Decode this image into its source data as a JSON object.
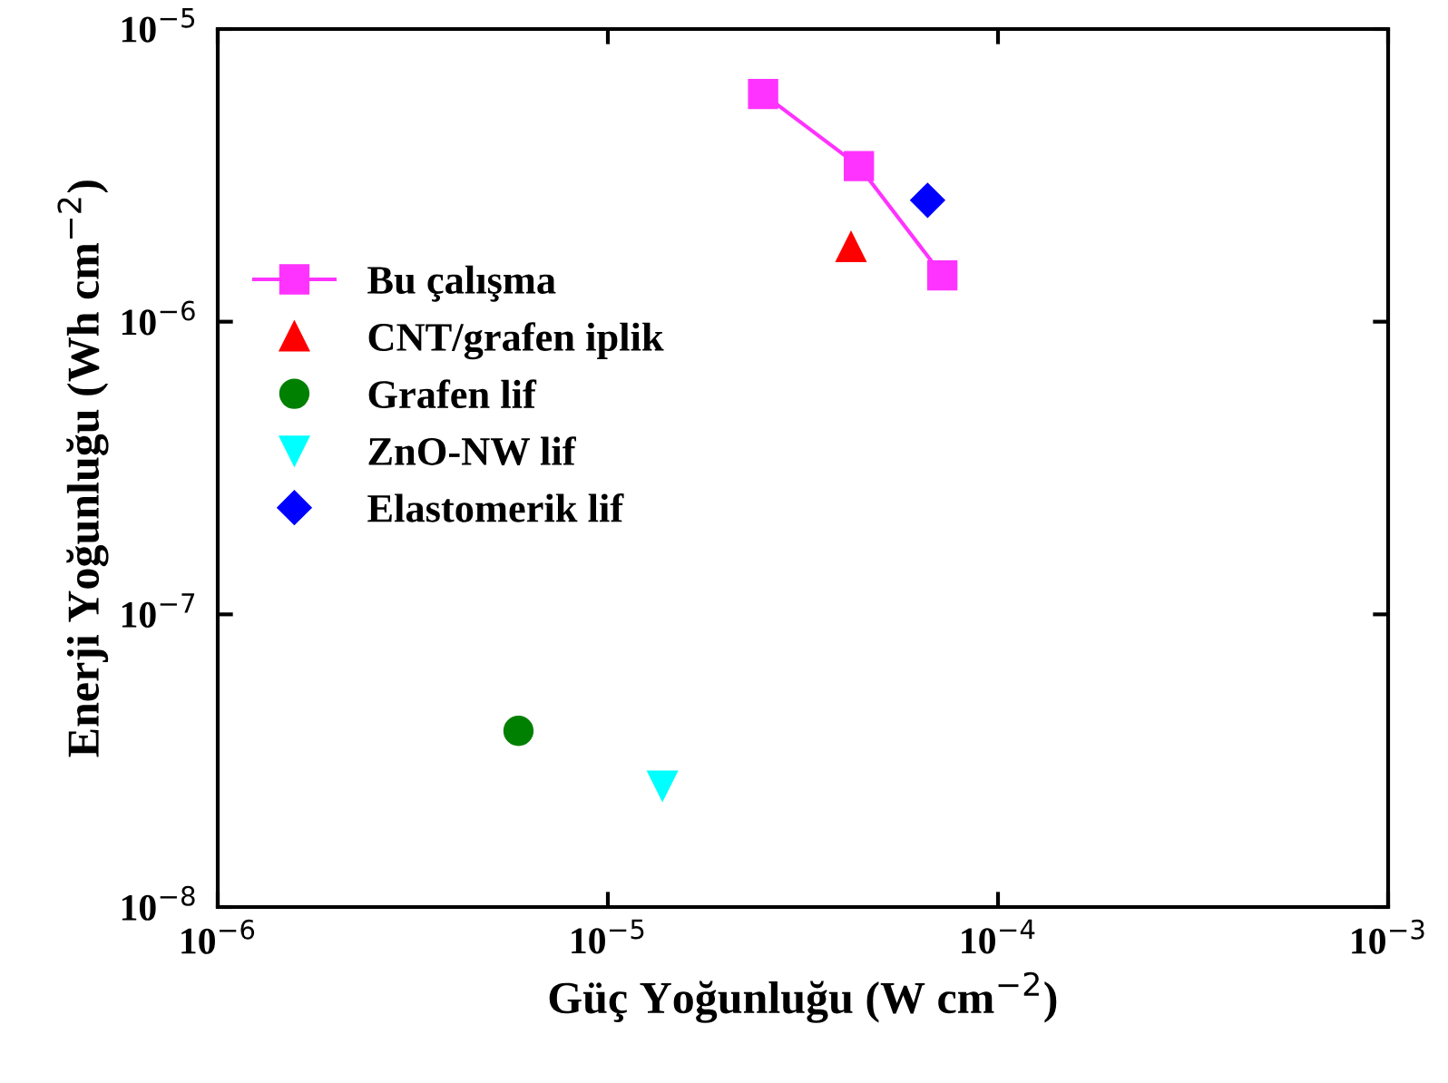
{
  "chart_data": {
    "type": "scatter",
    "xlabel": "Güç Yoğunluğu (W cm$^{−2}$)",
    "ylabel": "Enerji Yoğunluğu (Wh cm$^{−2}$)",
    "log": "xy",
    "xlim": [
      1e-06,
      0.001
    ],
    "ylim": [
      1e-08,
      1e-05
    ],
    "xticks": [
      {
        "value": 1e-06,
        "label": "10$^{−6}$"
      },
      {
        "value": 1e-05,
        "label": "10$^{−5}$"
      },
      {
        "value": 0.0001,
        "label": "10$^{−4}$"
      },
      {
        "value": 0.001,
        "label": "10$^{−3}$"
      }
    ],
    "yticks": [
      {
        "value": 1e-08,
        "label": "10$^{−8}$"
      },
      {
        "value": 1e-07,
        "label": "10$^{−7}$"
      },
      {
        "value": 1e-06,
        "label": "10$^{−6}$"
      },
      {
        "value": 1e-05,
        "label": "10$^{−5}$"
      }
    ],
    "grid": false,
    "legend": "left",
    "series": [
      {
        "name": "Bu çalışma",
        "type": "line",
        "color": "#ff33ff",
        "marker": "square",
        "x": [
          2.5e-05,
          4.4e-05,
          7.2e-05
        ],
        "values": [
          6e-06,
          3.4e-06,
          1.44e-06
        ]
      },
      {
        "name": "CNT/grafen iplik",
        "color": "#ff0000",
        "marker": "triangle",
        "x": [
          4.2e-05
        ],
        "values": [
          1.8e-06
        ]
      },
      {
        "name": "Grafen lif",
        "color": "#008000",
        "marker": "circle",
        "x": [
          5.9e-06
        ],
        "values": [
          4e-08
        ]
      },
      {
        "name": "ZnO-NW lif",
        "color": "#00ffff",
        "marker": "triangle_down",
        "x": [
          1.38e-05
        ],
        "values": [
          2.6e-08
        ]
      },
      {
        "name": "Elastomerik lif",
        "color": "#0000ff",
        "marker": "diamond",
        "x": [
          6.6e-05
        ],
        "values": [
          2.6e-06
        ]
      }
    ]
  }
}
